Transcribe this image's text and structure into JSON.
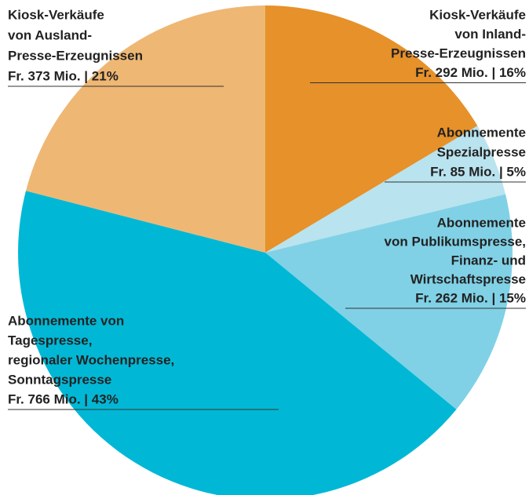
{
  "chart_data": {
    "type": "pie",
    "categories": [
      [
        "Kiosk-Verkäufe",
        "von Inland-",
        "Presse-Erzeugnissen"
      ],
      [
        "Abonnemente",
        "Spezialpresse"
      ],
      [
        "Abonnemente",
        "von Publikumspresse,",
        "Finanz- und",
        "Wirtschaftspresse"
      ],
      [
        "Abonnemente von",
        "Tagespresse,",
        "regionaler Wochenpresse,",
        "Sonntagspresse"
      ],
      [
        "Kiosk-Verkäufe",
        "von Ausland-",
        "Presse-Erzeugnissen"
      ]
    ],
    "values": [
      292,
      85,
      262,
      766,
      373
    ],
    "value_labels": [
      "Fr. 292 Mio. | 16%",
      "Fr. 85 Mio. | 5%",
      "Fr. 262 Mio. | 15%",
      "Fr. 766 Mio. | 43%",
      "Fr. 373 Mio. | 21%"
    ],
    "colors": [
      "#e6912a",
      "#b9e3ef",
      "#80d1e6",
      "#00b8d6",
      "#efb774"
    ]
  }
}
